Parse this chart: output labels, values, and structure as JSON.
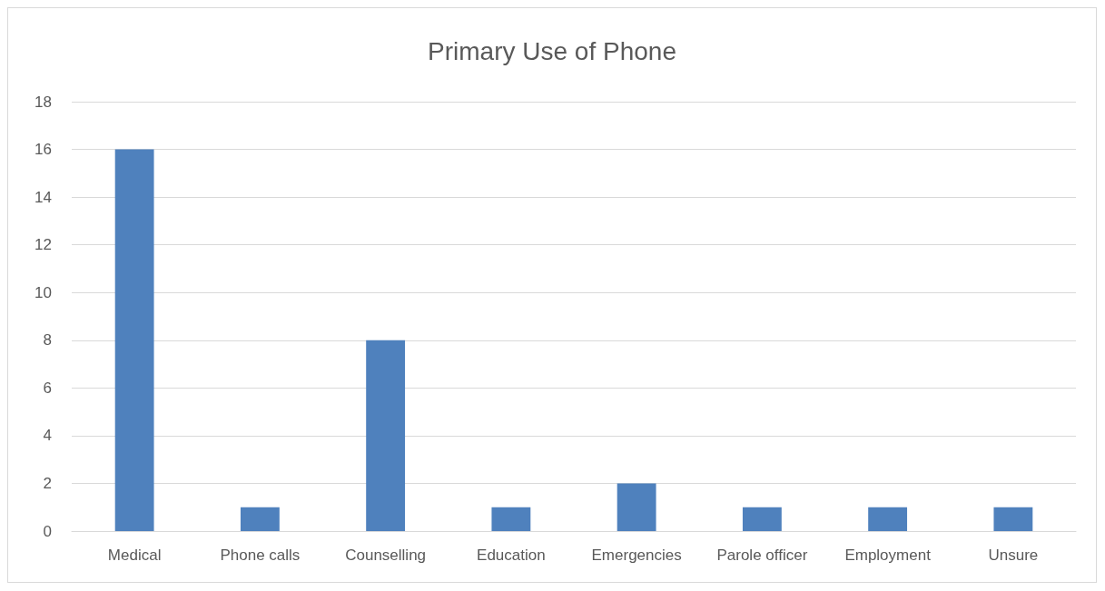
{
  "chart_data": {
    "type": "bar",
    "title": "Primary Use of Phone",
    "categories": [
      "Medical",
      "Phone calls",
      "Counselling",
      "Education",
      "Emergencies",
      "Parole officer",
      "Employment",
      "Unsure"
    ],
    "values": [
      16,
      1,
      8,
      1,
      2,
      1,
      1,
      1
    ],
    "color": "#4f81bd",
    "ylim": [
      0,
      18
    ],
    "yticks": [
      0,
      2,
      4,
      6,
      8,
      10,
      12,
      14,
      16,
      18
    ],
    "grid": "y"
  }
}
